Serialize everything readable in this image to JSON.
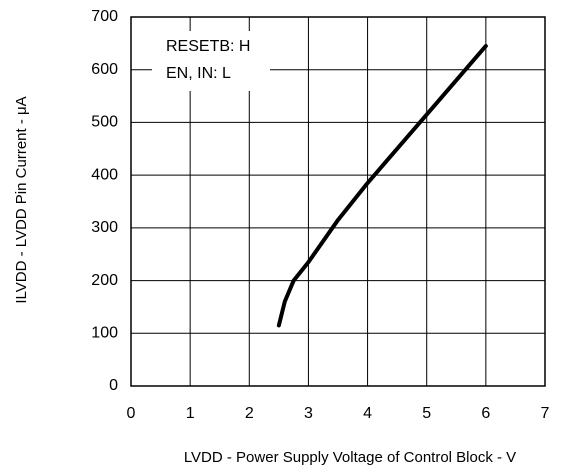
{
  "chart_data": {
    "type": "line",
    "x_label": "LVDD - Power Supply Voltage of Control Block - V",
    "y_label": "ILVDD - LVDD Pin Current - μA",
    "annotations": [
      "RESETB: H",
      "EN, IN: L"
    ],
    "x": [
      2.5,
      2.6,
      2.75,
      3,
      3.5,
      4,
      5,
      6
    ],
    "series": [
      {
        "name": "ILVDD",
        "color": "#000000",
        "values": [
          115,
          160,
          200,
          235,
          315,
          385,
          515,
          645
        ]
      }
    ],
    "xlim": [
      0,
      7
    ],
    "xticks": [
      0,
      1,
      2,
      3,
      4,
      5,
      6,
      7
    ],
    "ylim": [
      0,
      700
    ],
    "yticks": [
      0,
      100,
      200,
      300,
      400,
      500,
      600,
      700
    ],
    "grid": true
  }
}
